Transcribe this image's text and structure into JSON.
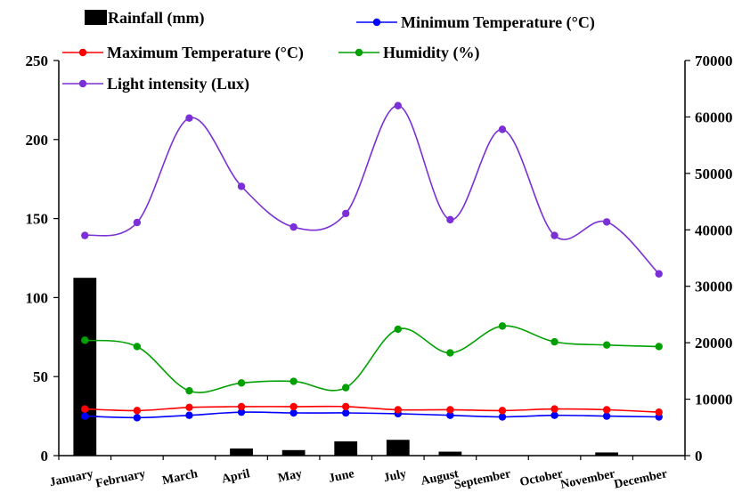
{
  "chart_data": {
    "type": "bar+line",
    "title": "",
    "categories": [
      "January",
      "February",
      "March",
      "April",
      "May",
      "June",
      "July",
      "August",
      "September",
      "October",
      "November",
      "December"
    ],
    "left_axis": {
      "ylim": [
        0,
        250
      ],
      "ticks": [
        "0",
        "50",
        "100",
        "150",
        "200",
        "250"
      ]
    },
    "right_axis": {
      "ylim": [
        0,
        70000
      ],
      "ticks": [
        "0",
        "10000",
        "20000",
        "30000",
        "40000",
        "50000",
        "60000",
        "70000"
      ]
    },
    "series": [
      {
        "name": "Rainfall (mm)",
        "kind": "bar",
        "axis": "left",
        "color": "#000000",
        "values": [
          112.5,
          0,
          0,
          4.5,
          3.5,
          9,
          10,
          2.5,
          0,
          0,
          2,
          0
        ]
      },
      {
        "name": "Minimum Temperature (°C)",
        "kind": "line",
        "axis": "left",
        "color": "#0000ff",
        "values": [
          25,
          24,
          25.5,
          27.5,
          27,
          27,
          26.5,
          25.5,
          24.5,
          25.5,
          25,
          24.5
        ]
      },
      {
        "name": "Maximum Temperature (°C)",
        "kind": "line",
        "axis": "left",
        "color": "#ff0000",
        "values": [
          29.5,
          28.5,
          30.5,
          31,
          31,
          31,
          29,
          29,
          28.5,
          29.5,
          29,
          27.5
        ]
      },
      {
        "name": "Humidity (%)",
        "kind": "line",
        "axis": "left",
        "color": "#00a000",
        "values": [
          73,
          69,
          41,
          46,
          47,
          43,
          80,
          65,
          82,
          72,
          70,
          69
        ]
      },
      {
        "name": "Light intensity (Lux)",
        "kind": "line",
        "axis": "right",
        "color": "#7b2fd6",
        "values": [
          39000,
          41300,
          59800,
          47700,
          40500,
          42900,
          62000,
          41800,
          57800,
          39000,
          41400,
          32200
        ]
      }
    ],
    "legend_placement": "top",
    "grid": false
  }
}
